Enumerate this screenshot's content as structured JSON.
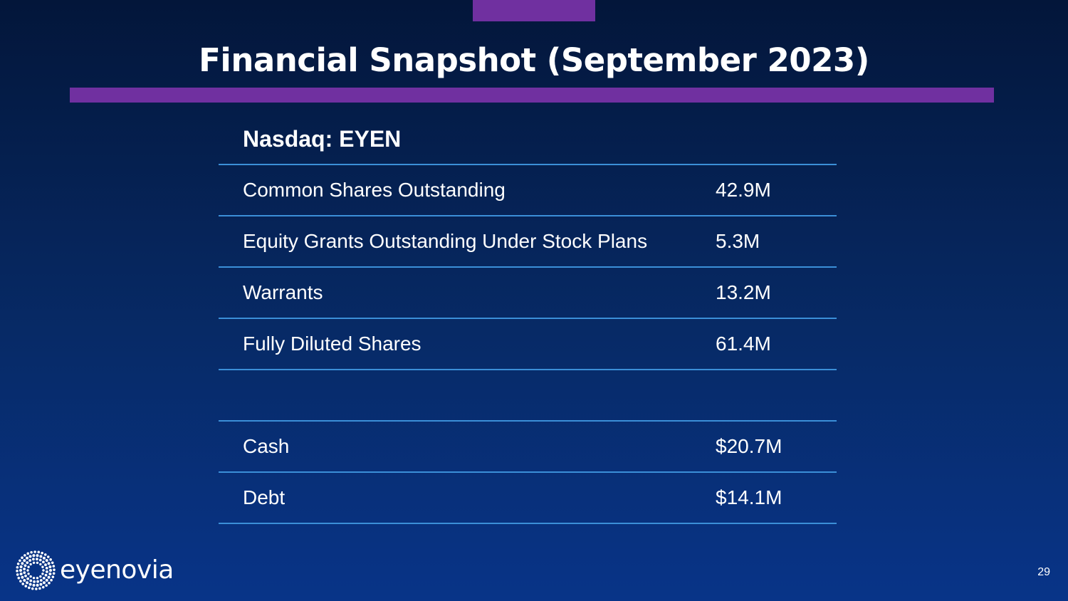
{
  "slide": {
    "title": "Financial Snapshot (September 2023)",
    "page_number": "29"
  },
  "table": {
    "header": "Nasdaq: EYEN",
    "rows": [
      {
        "label": "Common Shares Outstanding",
        "value": "42.9M"
      },
      {
        "label": "Equity Grants Outstanding Under Stock Plans",
        "value": "5.3M"
      },
      {
        "label": "Warrants",
        "value": "13.2M"
      },
      {
        "label": "Fully Diluted Shares",
        "value": "61.4M"
      }
    ],
    "rows2": [
      {
        "label": "Cash",
        "value": "$20.7M"
      },
      {
        "label": "Debt",
        "value": "$14.1M"
      }
    ]
  },
  "logo": {
    "wordmark": "eyenovia",
    "icon": "dotted-sunburst-icon"
  },
  "colors": {
    "accent_purple": "#7030a0",
    "rule_blue": "#3b8fd8",
    "background_top": "#03163a",
    "background_bottom": "#083488"
  }
}
